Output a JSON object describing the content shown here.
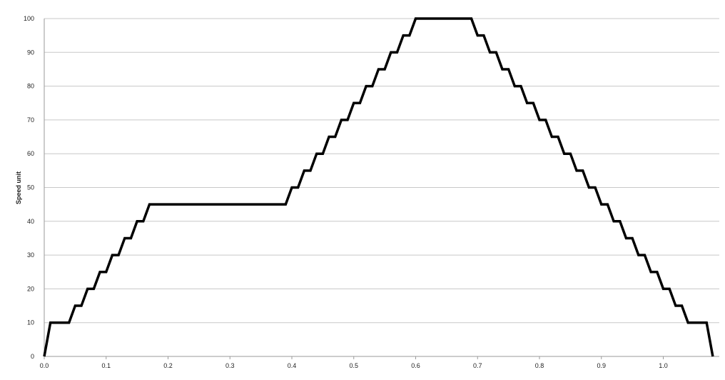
{
  "chart_data": {
    "type": "line",
    "title": "",
    "xlabel": "",
    "ylabel": "Speed unit",
    "xlim": [
      0.0,
      1.1
    ],
    "ylim": [
      0,
      100
    ],
    "grid": "horizontal",
    "legend": "none",
    "x_ticks": [
      "0.0",
      "0.1",
      "0.2",
      "0.3",
      "0.4",
      "0.5",
      "0.6",
      "0.7",
      "0.8",
      "0.9",
      "1.0"
    ],
    "x_tick_values": [
      0.0,
      0.1,
      0.2,
      0.3,
      0.4,
      0.5,
      0.6,
      0.7,
      0.8,
      0.9,
      1.0
    ],
    "y_ticks": [
      "0",
      "10",
      "20",
      "30",
      "40",
      "50",
      "60",
      "70",
      "80",
      "90",
      "100"
    ],
    "y_tick_values": [
      0,
      10,
      20,
      30,
      40,
      50,
      60,
      70,
      80,
      90,
      100
    ],
    "series": [
      {
        "color": "#000000",
        "x": [
          0.0,
          0.01,
          0.04,
          0.05,
          0.06,
          0.07,
          0.08,
          0.09,
          0.1,
          0.11,
          0.12,
          0.13,
          0.14,
          0.15,
          0.16,
          0.17,
          0.39,
          0.4,
          0.41,
          0.42,
          0.43,
          0.44,
          0.45,
          0.46,
          0.47,
          0.48,
          0.49,
          0.5,
          0.51,
          0.52,
          0.53,
          0.54,
          0.55,
          0.56,
          0.57,
          0.58,
          0.59,
          0.6,
          0.69,
          0.7,
          0.71,
          0.72,
          0.73,
          0.74,
          0.75,
          0.76,
          0.77,
          0.78,
          0.79,
          0.8,
          0.81,
          0.82,
          0.83,
          0.84,
          0.85,
          0.86,
          0.87,
          0.88,
          0.89,
          0.9,
          0.91,
          0.92,
          0.93,
          0.94,
          0.95,
          0.96,
          0.97,
          0.98,
          0.99,
          1.0,
          1.01,
          1.02,
          1.03,
          1.04,
          1.07,
          1.08
        ],
        "values": [
          0,
          10,
          10,
          15,
          15,
          20,
          20,
          25,
          25,
          30,
          30,
          35,
          35,
          40,
          40,
          45,
          45,
          50,
          50,
          55,
          55,
          60,
          60,
          65,
          65,
          70,
          70,
          75,
          75,
          80,
          80,
          85,
          85,
          90,
          90,
          95,
          95,
          100,
          100,
          95,
          95,
          90,
          90,
          85,
          85,
          80,
          80,
          75,
          75,
          70,
          70,
          65,
          65,
          60,
          60,
          55,
          55,
          50,
          50,
          45,
          45,
          40,
          40,
          35,
          35,
          30,
          30,
          25,
          25,
          20,
          20,
          15,
          15,
          10,
          10,
          0
        ]
      }
    ]
  }
}
